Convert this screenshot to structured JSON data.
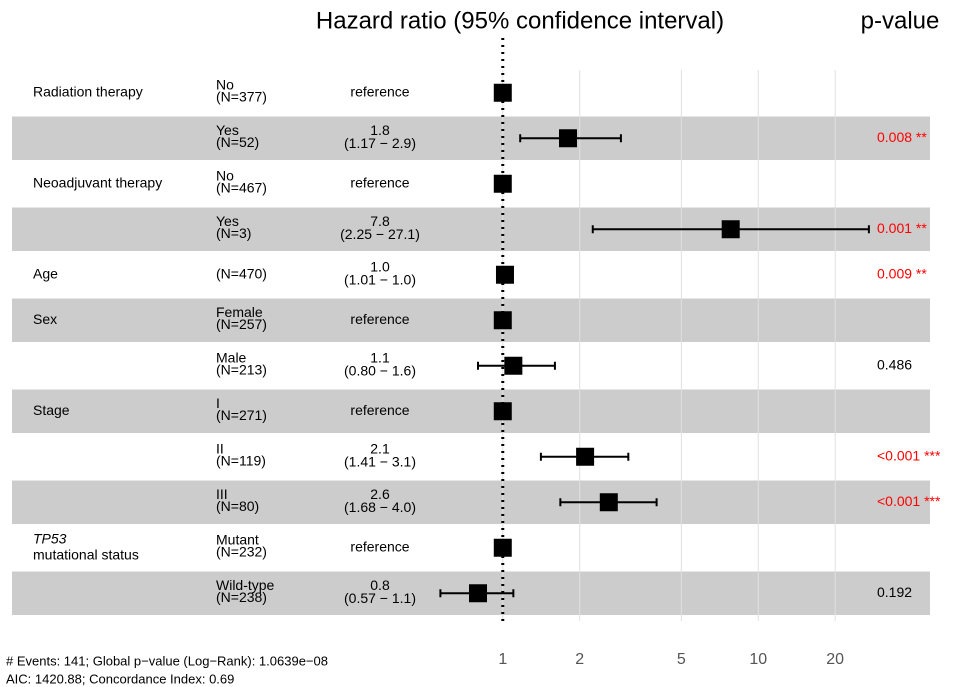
{
  "chart_data": {
    "type": "forest",
    "title": "Hazard ratio (95% confidence interval)",
    "pvalue_title": "p-value",
    "x_log": true,
    "xlim": [
      0.012,
      47
    ],
    "xticks": [
      1,
      2,
      5,
      10,
      20
    ],
    "grid": true,
    "reference_line": 1,
    "shade_color": "#cccccc",
    "rows": [
      {
        "variable": "Radiation therapy",
        "level": "No",
        "n": "(N=377)",
        "estimate": "reference",
        "hr": 1
      },
      {
        "level": "Yes",
        "n": "(N=52)",
        "estimate": "1.8",
        "ci_label": "(1.17 − 2.9)",
        "hr": 1.8,
        "ci": [
          1.17,
          2.9
        ],
        "p": "0.008 **",
        "p_color": "#ff0000"
      },
      {
        "variable": "Neoadjuvant therapy",
        "level": "No",
        "n": "(N=467)",
        "estimate": "reference",
        "hr": 1
      },
      {
        "level": "Yes",
        "n": "(N=3)",
        "estimate": "7.8",
        "ci_label": "(2.25 − 27.1)",
        "hr": 7.8,
        "ci": [
          2.25,
          27.1
        ],
        "p": "0.001 **",
        "p_color": "#ff0000"
      },
      {
        "variable": "Age",
        "n": "(N=470)",
        "estimate": "1.0",
        "ci_label": "(1.01 − 1.0)",
        "hr": 1.02,
        "ci": [
          1.01,
          1.04
        ],
        "p": "0.009 **",
        "p_color": "#ff0000"
      },
      {
        "variable": "Sex",
        "level": "Female",
        "n": "(N=257)",
        "estimate": "reference",
        "hr": 1
      },
      {
        "level": "Male",
        "n": "(N=213)",
        "estimate": "1.1",
        "ci_label": "(0.80 − 1.6)",
        "hr": 1.1,
        "ci": [
          0.8,
          1.6
        ],
        "p": "0.486",
        "p_color": "#000000"
      },
      {
        "variable": "Stage",
        "level": "I",
        "n": "(N=271)",
        "estimate": "reference",
        "hr": 1
      },
      {
        "level": "II",
        "n": "(N=119)",
        "estimate": "2.1",
        "ci_label": "(1.41 − 3.1)",
        "hr": 2.1,
        "ci": [
          1.41,
          3.1
        ],
        "p": "<0.001 ***",
        "p_color": "#ff0000"
      },
      {
        "level": "III",
        "n": "(N=80)",
        "estimate": "2.6",
        "ci_label": "(1.68 − 4.0)",
        "hr": 2.6,
        "ci": [
          1.68,
          4.0
        ],
        "p": "<0.001 ***",
        "p_color": "#ff0000"
      },
      {
        "variable_italic": "TP53",
        "variable": "mutational status",
        "level": "Mutant",
        "n": "(N=232)",
        "estimate": "reference",
        "hr": 1
      },
      {
        "level": "Wild-type",
        "n": "(N=238)",
        "estimate": "0.8",
        "ci_label": "(0.57 − 1.1)",
        "hr": 0.8,
        "ci": [
          0.57,
          1.1
        ],
        "p": "0.192",
        "p_color": "#000000"
      }
    ],
    "footer": [
      "# Events: 141; Global p−value (Log−Rank): 1.0639e−08",
      "AIC: 1420.88; Concordance Index: 0.69"
    ]
  }
}
